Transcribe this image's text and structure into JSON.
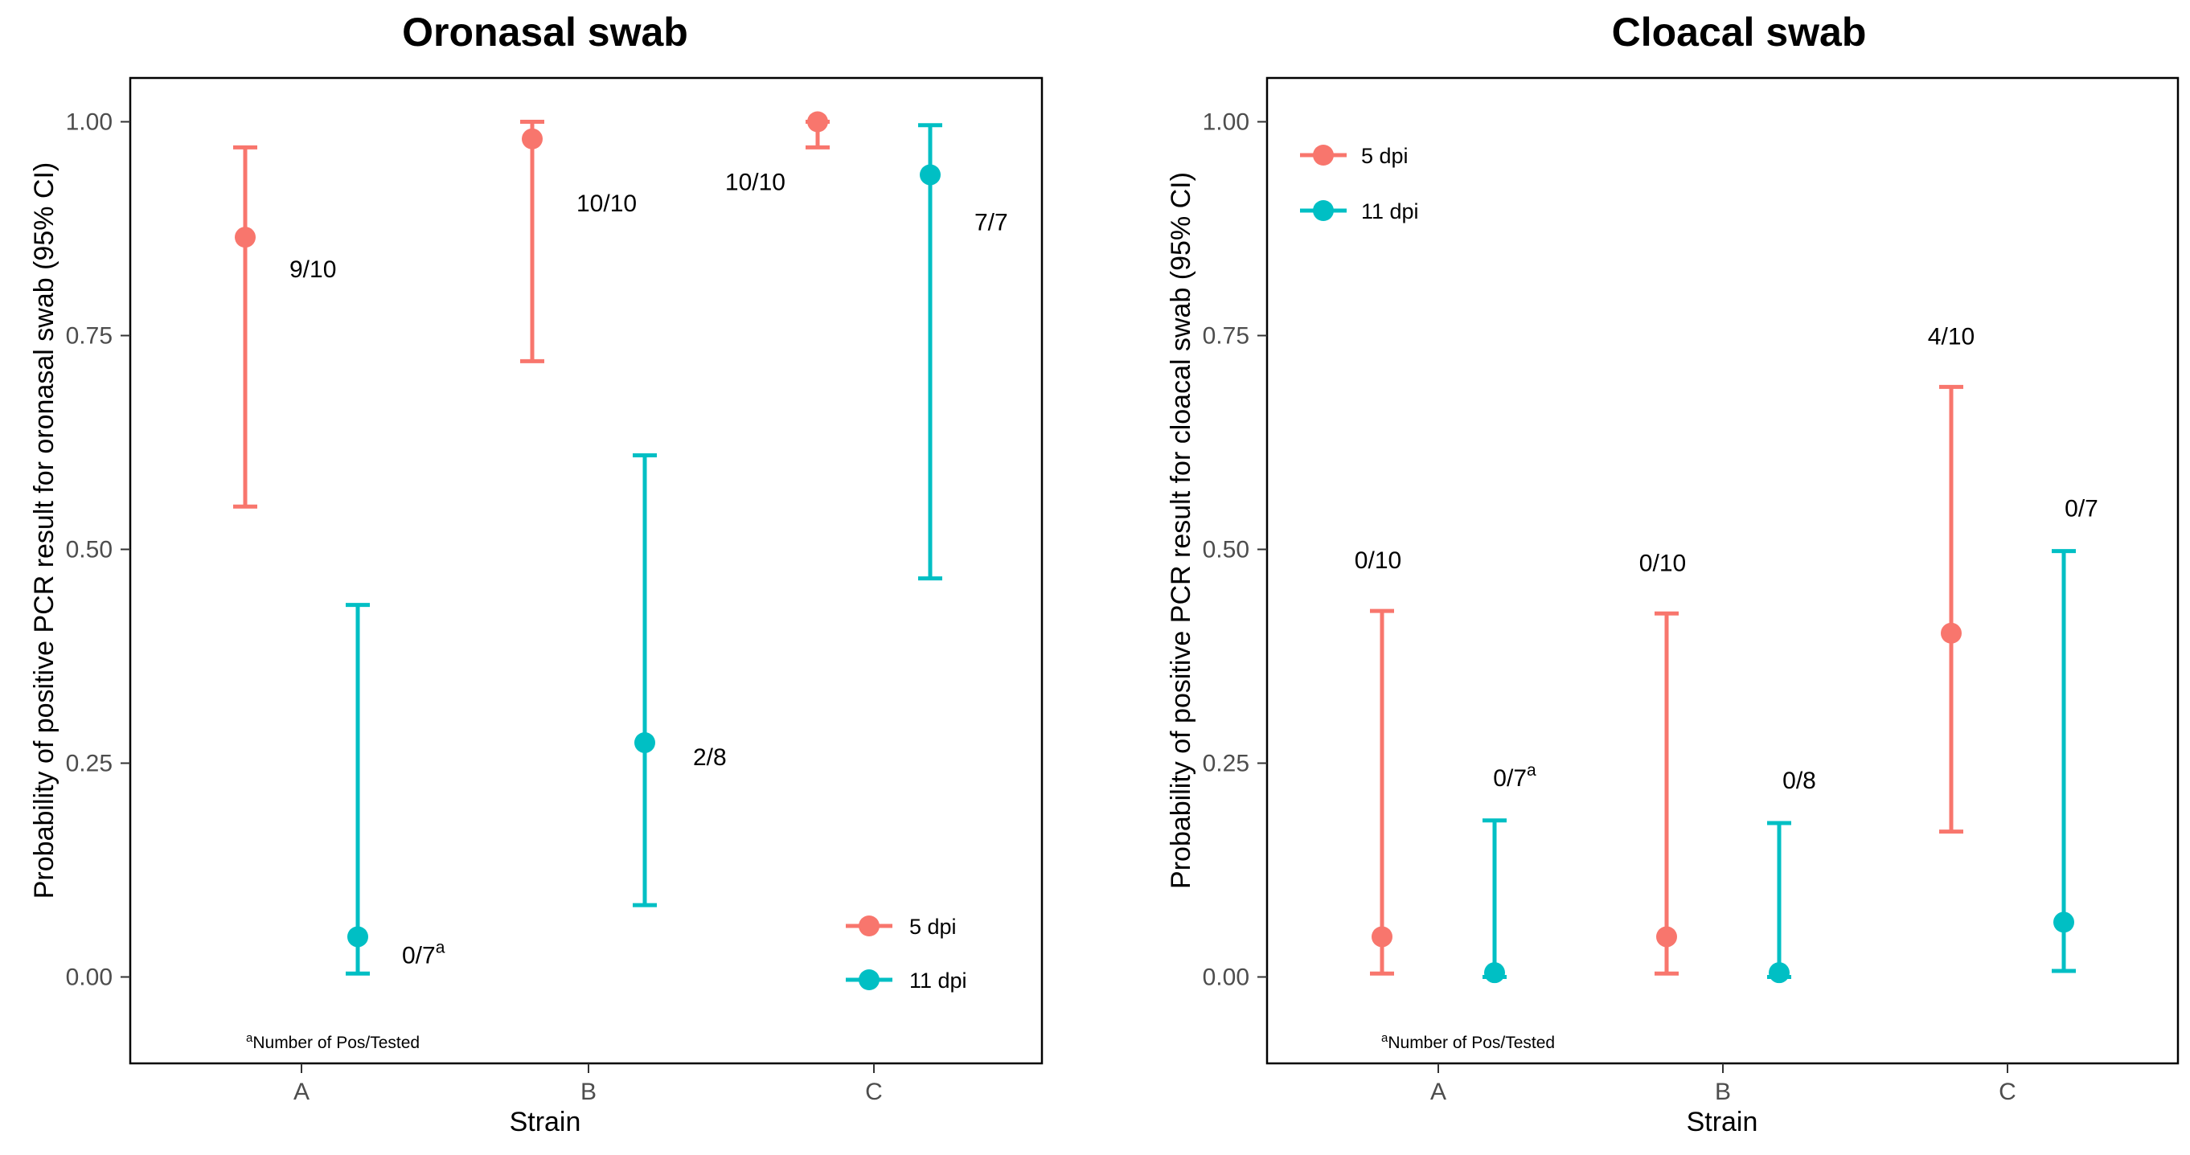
{
  "chart_data": [
    {
      "type": "scatter",
      "title": "Oronasal swab",
      "xlabel": "Strain",
      "ylabel": "Probability of positive PCR result for oronasal swab (95% CI)",
      "categories": [
        "A",
        "B",
        "C"
      ],
      "yticks": [
        "0.00",
        "0.25",
        "0.50",
        "0.75",
        "1.00"
      ],
      "ylim": [
        -0.1,
        1.1
      ],
      "legend": {
        "position": "bottom-right",
        "entries": [
          "5 dpi",
          "11 dpi"
        ]
      },
      "footnote": {
        "sup": "a",
        "text": "Number of Pos/Tested"
      },
      "series": [
        {
          "name": "5 dpi",
          "color": "#f8766d",
          "points": [
            {
              "category": "A",
              "value": 0.865,
              "ci_low": 0.55,
              "ci_high": 0.97,
              "label": "9/10",
              "sup": ""
            },
            {
              "category": "B",
              "value": 0.98,
              "ci_low": 0.72,
              "ci_high": 1.0,
              "label": "10/10",
              "sup": ""
            },
            {
              "category": "C",
              "value": 1.0,
              "ci_low": 0.97,
              "ci_high": 1.0,
              "label": "10/10",
              "sup": ""
            }
          ]
        },
        {
          "name": "11 dpi",
          "color": "#00bfc4",
          "points": [
            {
              "category": "A",
              "value": 0.047,
              "ci_low": 0.004,
              "ci_high": 0.435,
              "label": "0/7",
              "sup": "a"
            },
            {
              "category": "B",
              "value": 0.274,
              "ci_low": 0.084,
              "ci_high": 0.61,
              "label": "2/8",
              "sup": ""
            },
            {
              "category": "C",
              "value": 0.938,
              "ci_low": 0.466,
              "ci_high": 0.996,
              "label": "7/7",
              "sup": ""
            }
          ]
        }
      ]
    },
    {
      "type": "scatter",
      "title": "Cloacal swab",
      "xlabel": "Strain",
      "ylabel": "Probability of positive PCR result for cloacal swab (95% CI)",
      "categories": [
        "A",
        "B",
        "C"
      ],
      "yticks": [
        "0.00",
        "0.25",
        "0.50",
        "0.75",
        "1.00"
      ],
      "ylim": [
        -0.1,
        1.1
      ],
      "legend": {
        "position": "top-left",
        "entries": [
          "5 dpi",
          "11 dpi"
        ]
      },
      "footnote": {
        "sup": "a",
        "text": "Number of Pos/Tested"
      },
      "series": [
        {
          "name": "5 dpi",
          "color": "#f8766d",
          "points": [
            {
              "category": "A",
              "value": 0.047,
              "ci_low": 0.004,
              "ci_high": 0.428,
              "label": "0/10",
              "sup": ""
            },
            {
              "category": "B",
              "value": 0.047,
              "ci_low": 0.004,
              "ci_high": 0.425,
              "label": "0/10",
              "sup": ""
            },
            {
              "category": "C",
              "value": 0.402,
              "ci_low": 0.17,
              "ci_high": 0.69,
              "label": "4/10",
              "sup": ""
            }
          ]
        },
        {
          "name": "11 dpi",
          "color": "#00bfc4",
          "points": [
            {
              "category": "A",
              "value": 0.005,
              "ci_low": 0.0,
              "ci_high": 0.183,
              "label": "0/7",
              "sup": "a"
            },
            {
              "category": "B",
              "value": 0.005,
              "ci_low": 0.0,
              "ci_high": 0.18,
              "label": "0/8",
              "sup": ""
            },
            {
              "category": "C",
              "value": 0.064,
              "ci_low": 0.007,
              "ci_high": 0.498,
              "label": "0/7",
              "sup": ""
            }
          ]
        }
      ]
    }
  ]
}
